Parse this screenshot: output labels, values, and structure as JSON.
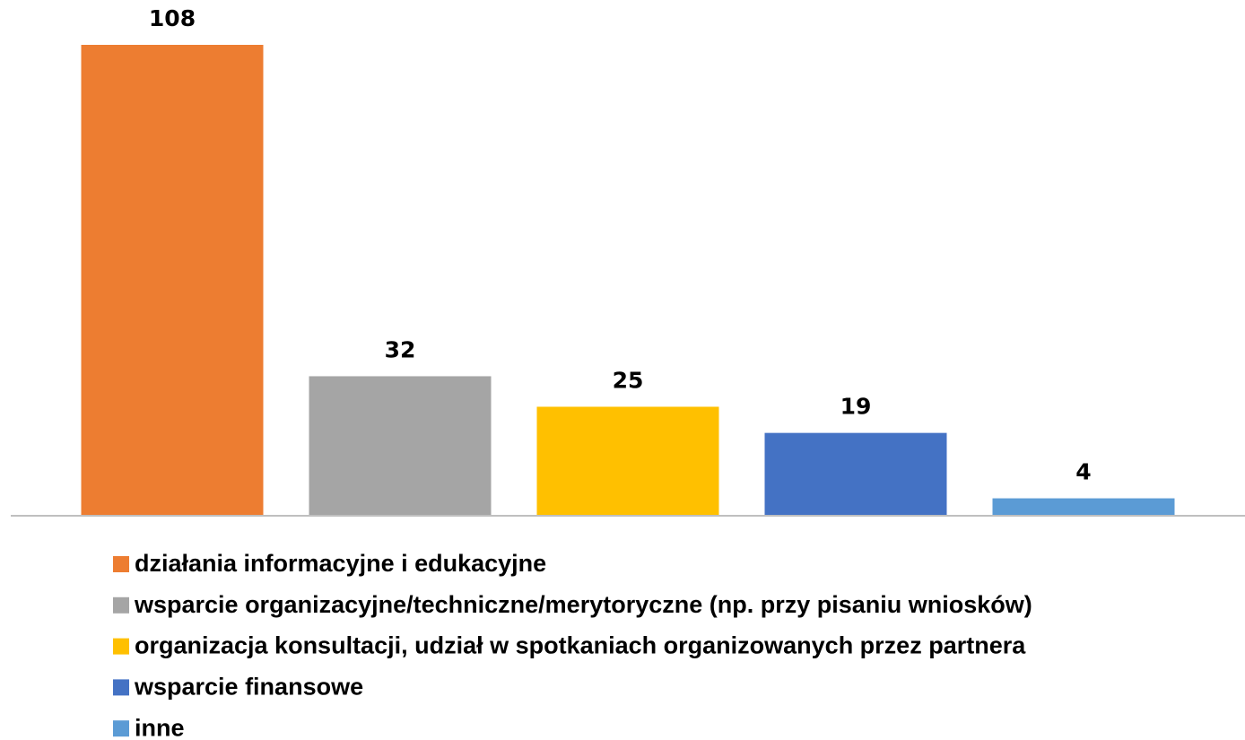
{
  "chart_data": {
    "type": "bar",
    "categories": [
      "działania informacyjne i edukacyjne",
      "wsparcie organizacyjne/techniczne/merytoryczne (np. przy pisaniu wniosków)",
      "organizacja konsultacji, udział w spotkaniach organizowanych przez partnera",
      "wsparcie finansowe",
      "inne"
    ],
    "values": [
      108,
      32,
      25,
      19,
      4
    ],
    "colors": [
      "#ed7d31",
      "#a5a5a5",
      "#ffc000",
      "#4472c4",
      "#5b9bd5"
    ],
    "legend": "bottom"
  }
}
